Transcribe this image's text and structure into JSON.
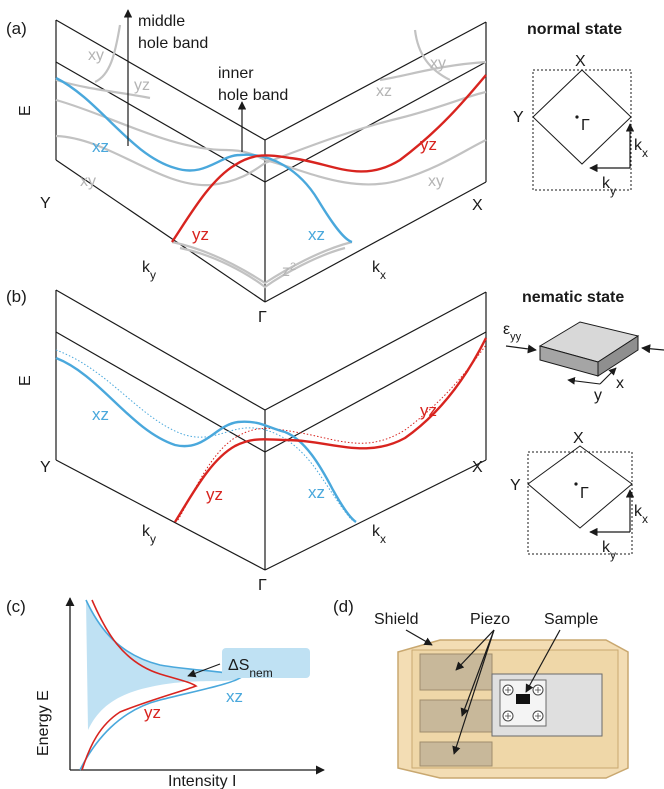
{
  "panels": {
    "a": "(a)",
    "b": "(b)",
    "c": "(c)",
    "d": "(d)"
  },
  "axes": {
    "energy": "E",
    "y_point": "Y",
    "x_point": "X",
    "ky": "k",
    "ky_sub": "y",
    "kx": "k",
    "kx_sub": "x",
    "gamma": "Γ"
  },
  "bands": {
    "xz": "xz",
    "yz": "yz",
    "xy": "xy",
    "z": "z",
    "z_sup": "2"
  },
  "annotations": {
    "middle_hole_1": "middle",
    "middle_hole_2": "hole band",
    "inner_hole_1": "inner",
    "inner_hole_2": "hole band"
  },
  "bz": {
    "normal_title": "normal state",
    "nematic_title": "nematic state",
    "x": "X",
    "y": "Y",
    "gamma": "Γ",
    "kx": "k",
    "kx_sub": "x",
    "ky": "k",
    "ky_sub": "y"
  },
  "strain": {
    "eps": "ε",
    "eps_sub": "yy",
    "x": "x",
    "y": "y"
  },
  "dos": {
    "ylabel": "Energy E",
    "xlabel": "Intensity I",
    "delta": "ΔS",
    "delta_sub": "nem",
    "xz": "xz",
    "yz": "yz"
  },
  "device": {
    "shield": "Shield",
    "piezo": "Piezo",
    "sample": "Sample"
  },
  "colors": {
    "xz": "#4aa8dc",
    "yz": "#d8241f",
    "inactive": "#c2c2c2",
    "shield": "#f3ddb4",
    "piezo": "#c8b89a"
  }
}
